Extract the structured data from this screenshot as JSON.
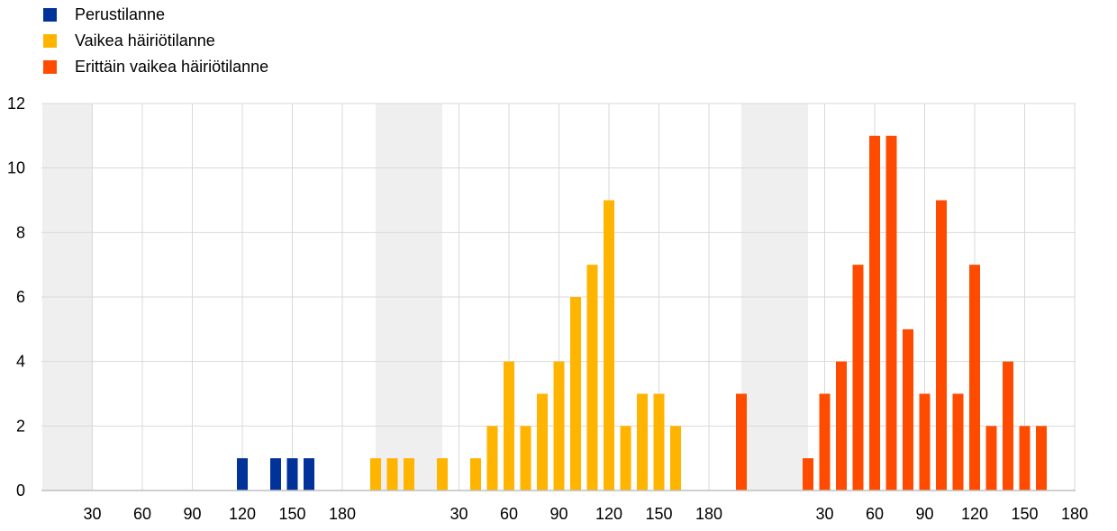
{
  "chart_data": {
    "type": "bar",
    "ylim": [
      0,
      12
    ],
    "yticks": [
      0,
      2,
      4,
      6,
      8,
      10,
      12
    ],
    "grid": true,
    "legend_placement": "top-left",
    "xtick_labels": [
      "30",
      "60",
      "90",
      "120",
      "150",
      "180"
    ],
    "shaded_bands": [
      {
        "group": 0,
        "from": 0,
        "to": 30
      },
      {
        "group": 1,
        "from": -20,
        "to": 20
      },
      {
        "group": 2,
        "from": -20,
        "to": 20
      }
    ],
    "series": [
      {
        "name": "Perustilanne",
        "color": "#003299",
        "points": [
          {
            "x": 120,
            "y": 1
          },
          {
            "x": 140,
            "y": 1
          },
          {
            "x": 150,
            "y": 1
          },
          {
            "x": 160,
            "y": 1
          }
        ]
      },
      {
        "name": "Vaikea häiriötilanne",
        "color": "#ffb400",
        "points": [
          {
            "x": -20,
            "y": 1
          },
          {
            "x": -10,
            "y": 1
          },
          {
            "x": 0,
            "y": 1
          },
          {
            "x": 20,
            "y": 1
          },
          {
            "x": 40,
            "y": 1
          },
          {
            "x": 50,
            "y": 2
          },
          {
            "x": 60,
            "y": 4
          },
          {
            "x": 70,
            "y": 2
          },
          {
            "x": 80,
            "y": 3
          },
          {
            "x": 90,
            "y": 4
          },
          {
            "x": 100,
            "y": 6
          },
          {
            "x": 110,
            "y": 7
          },
          {
            "x": 120,
            "y": 9
          },
          {
            "x": 130,
            "y": 2
          },
          {
            "x": 140,
            "y": 3
          },
          {
            "x": 150,
            "y": 3
          },
          {
            "x": 160,
            "y": 2
          }
        ]
      },
      {
        "name": "Erittäin vaikea häiriötilanne",
        "color": "#ff4b00",
        "points": [
          {
            "x": -20,
            "y": 3
          },
          {
            "x": 20,
            "y": 1
          },
          {
            "x": 30,
            "y": 3
          },
          {
            "x": 40,
            "y": 4
          },
          {
            "x": 50,
            "y": 7
          },
          {
            "x": 60,
            "y": 11
          },
          {
            "x": 70,
            "y": 11
          },
          {
            "x": 80,
            "y": 5
          },
          {
            "x": 90,
            "y": 3
          },
          {
            "x": 100,
            "y": 9
          },
          {
            "x": 110,
            "y": 3
          },
          {
            "x": 120,
            "y": 7
          },
          {
            "x": 130,
            "y": 2
          },
          {
            "x": 140,
            "y": 4
          },
          {
            "x": 150,
            "y": 2
          },
          {
            "x": 160,
            "y": 2
          }
        ]
      }
    ]
  }
}
